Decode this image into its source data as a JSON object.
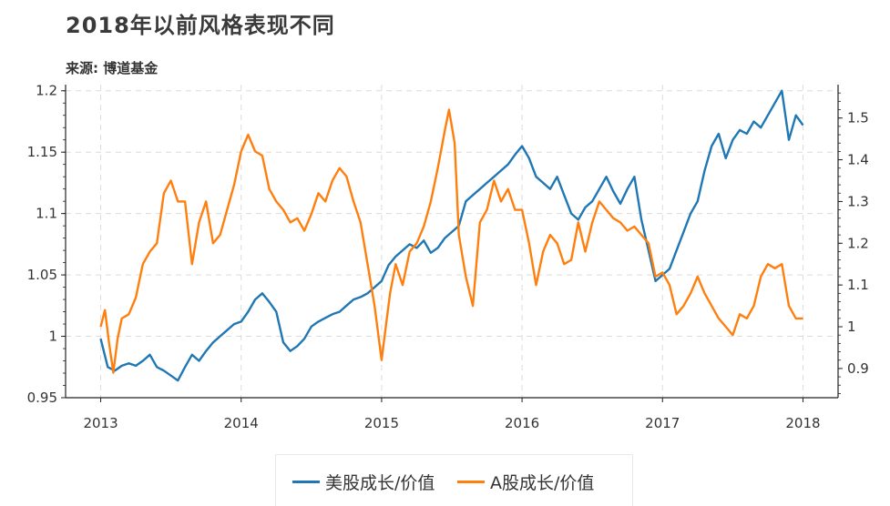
{
  "header": {
    "title": "2018年以前风格表现不同",
    "source": "来源: 博道基金"
  },
  "legend": [
    {
      "label": "美股成长/价值",
      "color": "#1f77b4"
    },
    {
      "label": "A股成长/价值",
      "color": "#ff7f0e"
    }
  ],
  "chart_data": {
    "type": "line",
    "title": "2018年以前风格表现不同",
    "x_ticks": [
      "2013",
      "2014",
      "2015",
      "2016",
      "2017",
      "2018"
    ],
    "xlim": [
      2012.75,
      2018.25
    ],
    "grid": true,
    "legend_position": "bottom",
    "left_axis": {
      "ylim": [
        0.95,
        1.205
      ],
      "ticks": [
        "0.95",
        "1",
        "1.05",
        "1.1",
        "1.15",
        "1.2"
      ]
    },
    "right_axis": {
      "ylim": [
        0.83,
        1.58
      ],
      "ticks": [
        "0.9",
        "1",
        "1.1",
        "1.2",
        "1.3",
        "1.4",
        "1.5"
      ]
    },
    "series": [
      {
        "name": "美股成长/价值",
        "axis": "left",
        "color": "#1f77b4",
        "x": [
          2013.0,
          2013.05,
          2013.1,
          2013.15,
          2013.2,
          2013.25,
          2013.3,
          2013.35,
          2013.4,
          2013.45,
          2013.5,
          2013.55,
          2013.6,
          2013.65,
          2013.7,
          2013.75,
          2013.8,
          2013.85,
          2013.9,
          2013.95,
          2014.0,
          2014.05,
          2014.1,
          2014.15,
          2014.2,
          2014.25,
          2014.3,
          2014.35,
          2014.4,
          2014.45,
          2014.5,
          2014.55,
          2014.6,
          2014.65,
          2014.7,
          2014.75,
          2014.8,
          2014.85,
          2014.9,
          2014.95,
          2015.0,
          2015.05,
          2015.1,
          2015.15,
          2015.2,
          2015.25,
          2015.3,
          2015.35,
          2015.4,
          2015.45,
          2015.5,
          2015.55,
          2015.6,
          2015.65,
          2015.7,
          2015.75,
          2015.8,
          2015.85,
          2015.9,
          2015.95,
          2016.0,
          2016.05,
          2016.1,
          2016.15,
          2016.2,
          2016.25,
          2016.3,
          2016.35,
          2016.4,
          2016.45,
          2016.5,
          2016.55,
          2016.6,
          2016.65,
          2016.7,
          2016.75,
          2016.8,
          2016.85,
          2016.9,
          2016.95,
          2017.0,
          2017.05,
          2017.1,
          2017.15,
          2017.2,
          2017.25,
          2017.3,
          2017.35,
          2017.4,
          2017.45,
          2017.5,
          2017.55,
          2017.6,
          2017.65,
          2017.7,
          2017.75,
          2017.8,
          2017.85,
          2017.9,
          2017.95,
          2018.0
        ],
        "values": [
          0.998,
          0.975,
          0.972,
          0.976,
          0.978,
          0.976,
          0.98,
          0.985,
          0.975,
          0.972,
          0.968,
          0.964,
          0.975,
          0.985,
          0.98,
          0.988,
          0.995,
          1.0,
          1.005,
          1.01,
          1.012,
          1.02,
          1.03,
          1.035,
          1.028,
          1.02,
          0.995,
          0.988,
          0.992,
          0.998,
          1.008,
          1.012,
          1.015,
          1.018,
          1.02,
          1.025,
          1.03,
          1.032,
          1.035,
          1.04,
          1.045,
          1.058,
          1.065,
          1.07,
          1.075,
          1.072,
          1.078,
          1.068,
          1.072,
          1.08,
          1.085,
          1.09,
          1.11,
          1.115,
          1.12,
          1.125,
          1.13,
          1.135,
          1.14,
          1.148,
          1.155,
          1.145,
          1.13,
          1.125,
          1.12,
          1.13,
          1.115,
          1.1,
          1.095,
          1.105,
          1.11,
          1.12,
          1.13,
          1.118,
          1.108,
          1.12,
          1.13,
          1.095,
          1.07,
          1.045,
          1.05,
          1.055,
          1.07,
          1.085,
          1.1,
          1.11,
          1.135,
          1.155,
          1.165,
          1.145,
          1.16,
          1.168,
          1.165,
          1.175,
          1.17,
          1.18,
          1.19,
          1.2,
          1.16,
          1.18,
          1.172
        ]
      },
      {
        "name": "A股成长/价值",
        "axis": "right",
        "color": "#ff7f0e",
        "x": [
          2013.0,
          2013.03,
          2013.06,
          2013.09,
          2013.12,
          2013.15,
          2013.2,
          2013.25,
          2013.3,
          2013.35,
          2013.4,
          2013.45,
          2013.5,
          2013.55,
          2013.6,
          2013.65,
          2013.7,
          2013.75,
          2013.8,
          2013.85,
          2013.9,
          2013.95,
          2014.0,
          2014.05,
          2014.1,
          2014.15,
          2014.2,
          2014.25,
          2014.3,
          2014.35,
          2014.4,
          2014.45,
          2014.5,
          2014.55,
          2014.6,
          2014.65,
          2014.7,
          2014.75,
          2014.8,
          2014.85,
          2014.9,
          2014.95,
          2015.0,
          2015.03,
          2015.06,
          2015.1,
          2015.15,
          2015.2,
          2015.25,
          2015.3,
          2015.35,
          2015.4,
          2015.45,
          2015.48,
          2015.52,
          2015.55,
          2015.6,
          2015.65,
          2015.7,
          2015.75,
          2015.8,
          2015.85,
          2015.9,
          2015.95,
          2016.0,
          2016.05,
          2016.1,
          2016.15,
          2016.2,
          2016.25,
          2016.3,
          2016.35,
          2016.4,
          2016.45,
          2016.5,
          2016.55,
          2016.6,
          2016.65,
          2016.7,
          2016.75,
          2016.8,
          2016.85,
          2016.9,
          2016.95,
          2017.0,
          2017.05,
          2017.1,
          2017.15,
          2017.2,
          2017.25,
          2017.3,
          2017.35,
          2017.4,
          2017.45,
          2017.5,
          2017.55,
          2017.6,
          2017.65,
          2017.7,
          2017.75,
          2017.8,
          2017.85,
          2017.9,
          2017.95,
          2018.0
        ],
        "values": [
          1.0,
          1.04,
          0.96,
          0.89,
          0.97,
          1.02,
          1.03,
          1.07,
          1.15,
          1.18,
          1.2,
          1.32,
          1.35,
          1.3,
          1.3,
          1.15,
          1.25,
          1.3,
          1.2,
          1.22,
          1.28,
          1.34,
          1.42,
          1.46,
          1.42,
          1.41,
          1.33,
          1.3,
          1.28,
          1.25,
          1.26,
          1.23,
          1.27,
          1.32,
          1.3,
          1.35,
          1.38,
          1.36,
          1.3,
          1.25,
          1.15,
          1.05,
          0.92,
          1.0,
          1.08,
          1.15,
          1.1,
          1.18,
          1.2,
          1.24,
          1.3,
          1.38,
          1.47,
          1.52,
          1.44,
          1.22,
          1.12,
          1.05,
          1.25,
          1.28,
          1.35,
          1.3,
          1.33,
          1.28,
          1.28,
          1.2,
          1.1,
          1.18,
          1.22,
          1.2,
          1.15,
          1.16,
          1.25,
          1.18,
          1.25,
          1.3,
          1.28,
          1.26,
          1.25,
          1.23,
          1.24,
          1.22,
          1.2,
          1.12,
          1.13,
          1.1,
          1.03,
          1.05,
          1.08,
          1.12,
          1.08,
          1.05,
          1.02,
          1.0,
          0.98,
          1.03,
          1.02,
          1.05,
          1.12,
          1.15,
          1.14,
          1.15,
          1.05,
          1.02,
          1.02
        ]
      }
    ]
  }
}
